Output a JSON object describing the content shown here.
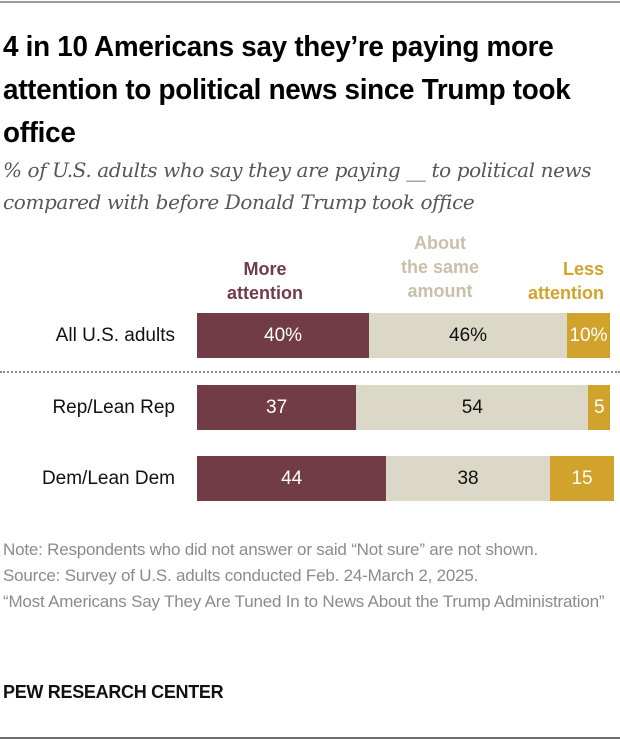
{
  "header": {
    "title": "4 in 10 Americans say they’re paying more attention to political news since Trump took office",
    "subtitle": "% of U.S. adults who say they are paying __ to political news compared with before Donald Trump took office"
  },
  "chart_data": {
    "type": "bar",
    "orientation": "horizontal-stacked",
    "title": "4 in 10 Americans say they’re paying more attention to political news since Trump took office",
    "subtitle": "% of U.S. adults who say they are paying __ to political news compared with before Donald Trump took office",
    "categories": [
      "All U.S. adults",
      "Rep/Lean Rep",
      "Dem/Lean Dem"
    ],
    "series": [
      {
        "key": "more",
        "name": "More attention",
        "color": "#723c47",
        "values": [
          40,
          37,
          44
        ],
        "labels": [
          "40%",
          "37",
          "44"
        ]
      },
      {
        "key": "same",
        "name": "About the same amount",
        "color": "#dcd8c8",
        "legend_color": "#c9c0aa",
        "values": [
          46,
          54,
          38
        ],
        "labels": [
          "46%",
          "54",
          "38"
        ]
      },
      {
        "key": "less",
        "name": "Less attention",
        "color": "#d2a32c",
        "values": [
          10,
          5,
          15
        ],
        "labels": [
          "10%",
          "5",
          "15"
        ]
      }
    ],
    "legend": {
      "placement": "top",
      "more_lines": [
        "More",
        "attention"
      ],
      "same_lines": [
        "About",
        "the same",
        "amount"
      ],
      "less_lines": [
        "Less",
        "attention"
      ]
    },
    "xlim": [
      0,
      100
    ],
    "grid": false,
    "xlabel": "",
    "ylabel": ""
  },
  "footer": {
    "note": "Note: Respondents who did not answer or said “Not sure” are not shown.",
    "source": "Source: Survey of U.S. adults conducted Feb. 24-March 2, 2025.",
    "report": "“Most Americans Say They Are Tuned In to News About the Trump Administration”",
    "brand": "PEW RESEARCH CENTER"
  }
}
